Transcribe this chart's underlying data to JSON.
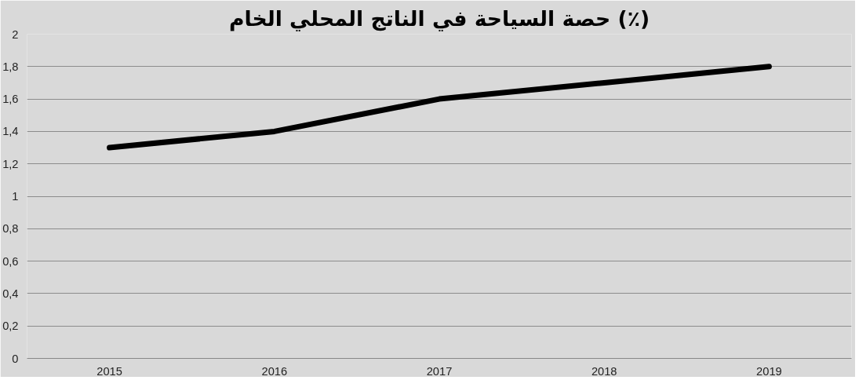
{
  "chart_data": {
    "type": "line",
    "title": "حصة السياحة في الناتج المحلي الخام (٪)",
    "categories": [
      "2015",
      "2016",
      "2017",
      "2018",
      "2019"
    ],
    "series": [
      {
        "color": "#000000",
        "values": [
          1.3,
          1.4,
          1.6,
          1.7,
          1.8
        ]
      }
    ],
    "ylim": [
      0,
      2
    ],
    "yticks": [
      0,
      {
        "value": 0.2,
        "label": "0,2"
      },
      {
        "value": 0.4,
        "label": "0,4"
      },
      {
        "value": 0.6,
        "label": "0,6"
      },
      {
        "value": 0.8,
        "label": "0,8"
      },
      1,
      {
        "value": 1.2,
        "label": "1,2"
      },
      {
        "value": 1.4,
        "label": "1,4"
      },
      {
        "value": 1.6,
        "label": "1,6"
      },
      {
        "value": 1.8,
        "label": "1,8"
      },
      2
    ],
    "grid": "y",
    "marker": "none",
    "line_style": "solid"
  }
}
